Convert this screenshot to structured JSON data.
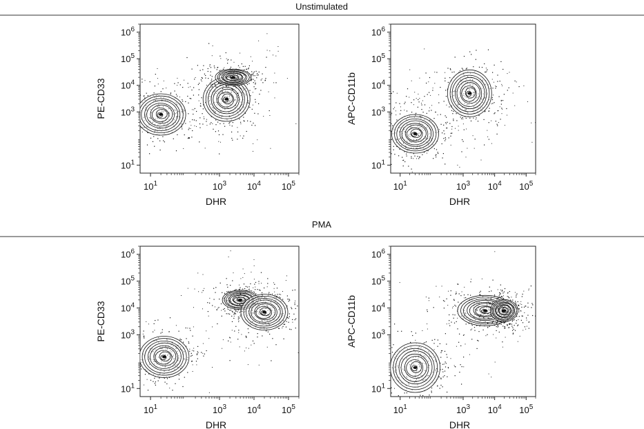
{
  "sections": [
    {
      "title": "Unstimulated"
    },
    {
      "title": "PMA"
    }
  ],
  "chart_data": [
    {
      "type": "scatter",
      "section": "Unstimulated",
      "xlabel": "DHR",
      "ylabel": "PE-CD33",
      "x_scale": "log",
      "y_scale": "log",
      "xlim": [
        5,
        200000
      ],
      "ylim": [
        5,
        2000000
      ],
      "x_ticks": [
        "10^1",
        "10^3",
        "10^4",
        "10^5"
      ],
      "y_ticks": [
        "10^1",
        "10^3",
        "10^4",
        "10^5",
        "10^6"
      ],
      "populations": [
        {
          "x": 20,
          "y": 800
        },
        {
          "x": 1600,
          "y": 3000
        },
        {
          "x": 2500,
          "y": 20000
        }
      ]
    },
    {
      "type": "scatter",
      "section": "Unstimulated",
      "xlabel": "DHR",
      "ylabel": "APC-CD11b",
      "x_scale": "log",
      "y_scale": "log",
      "xlim": [
        5,
        200000
      ],
      "ylim": [
        5,
        2000000
      ],
      "x_ticks": [
        "10^1",
        "10^3",
        "10^4",
        "10^5"
      ],
      "y_ticks": [
        "10^1",
        "10^3",
        "10^4",
        "10^5",
        "10^6"
      ],
      "populations": [
        {
          "x": 30,
          "y": 150
        },
        {
          "x": 1600,
          "y": 5000
        }
      ]
    },
    {
      "type": "scatter",
      "section": "PMA",
      "xlabel": "DHR",
      "ylabel": "PE-CD33",
      "x_scale": "log",
      "y_scale": "log",
      "xlim": [
        5,
        200000
      ],
      "ylim": [
        5,
        2000000
      ],
      "x_ticks": [
        "10^1",
        "10^3",
        "10^4",
        "10^5"
      ],
      "y_ticks": [
        "10^1",
        "10^3",
        "10^4",
        "10^5",
        "10^6"
      ],
      "populations": [
        {
          "x": 25,
          "y": 150
        },
        {
          "x": 4000,
          "y": 20000
        },
        {
          "x": 20000,
          "y": 7000
        }
      ]
    },
    {
      "type": "scatter",
      "section": "PMA",
      "xlabel": "DHR",
      "ylabel": "APC-CD11b",
      "x_scale": "log",
      "y_scale": "log",
      "xlim": [
        5,
        200000
      ],
      "ylim": [
        5,
        2000000
      ],
      "x_ticks": [
        "10^1",
        "10^3",
        "10^4",
        "10^5"
      ],
      "y_ticks": [
        "10^1",
        "10^3",
        "10^4",
        "10^5",
        "10^6"
      ],
      "populations": [
        {
          "x": 30,
          "y": 60
        },
        {
          "x": 5000,
          "y": 8000
        },
        {
          "x": 20000,
          "y": 8000
        }
      ]
    }
  ]
}
